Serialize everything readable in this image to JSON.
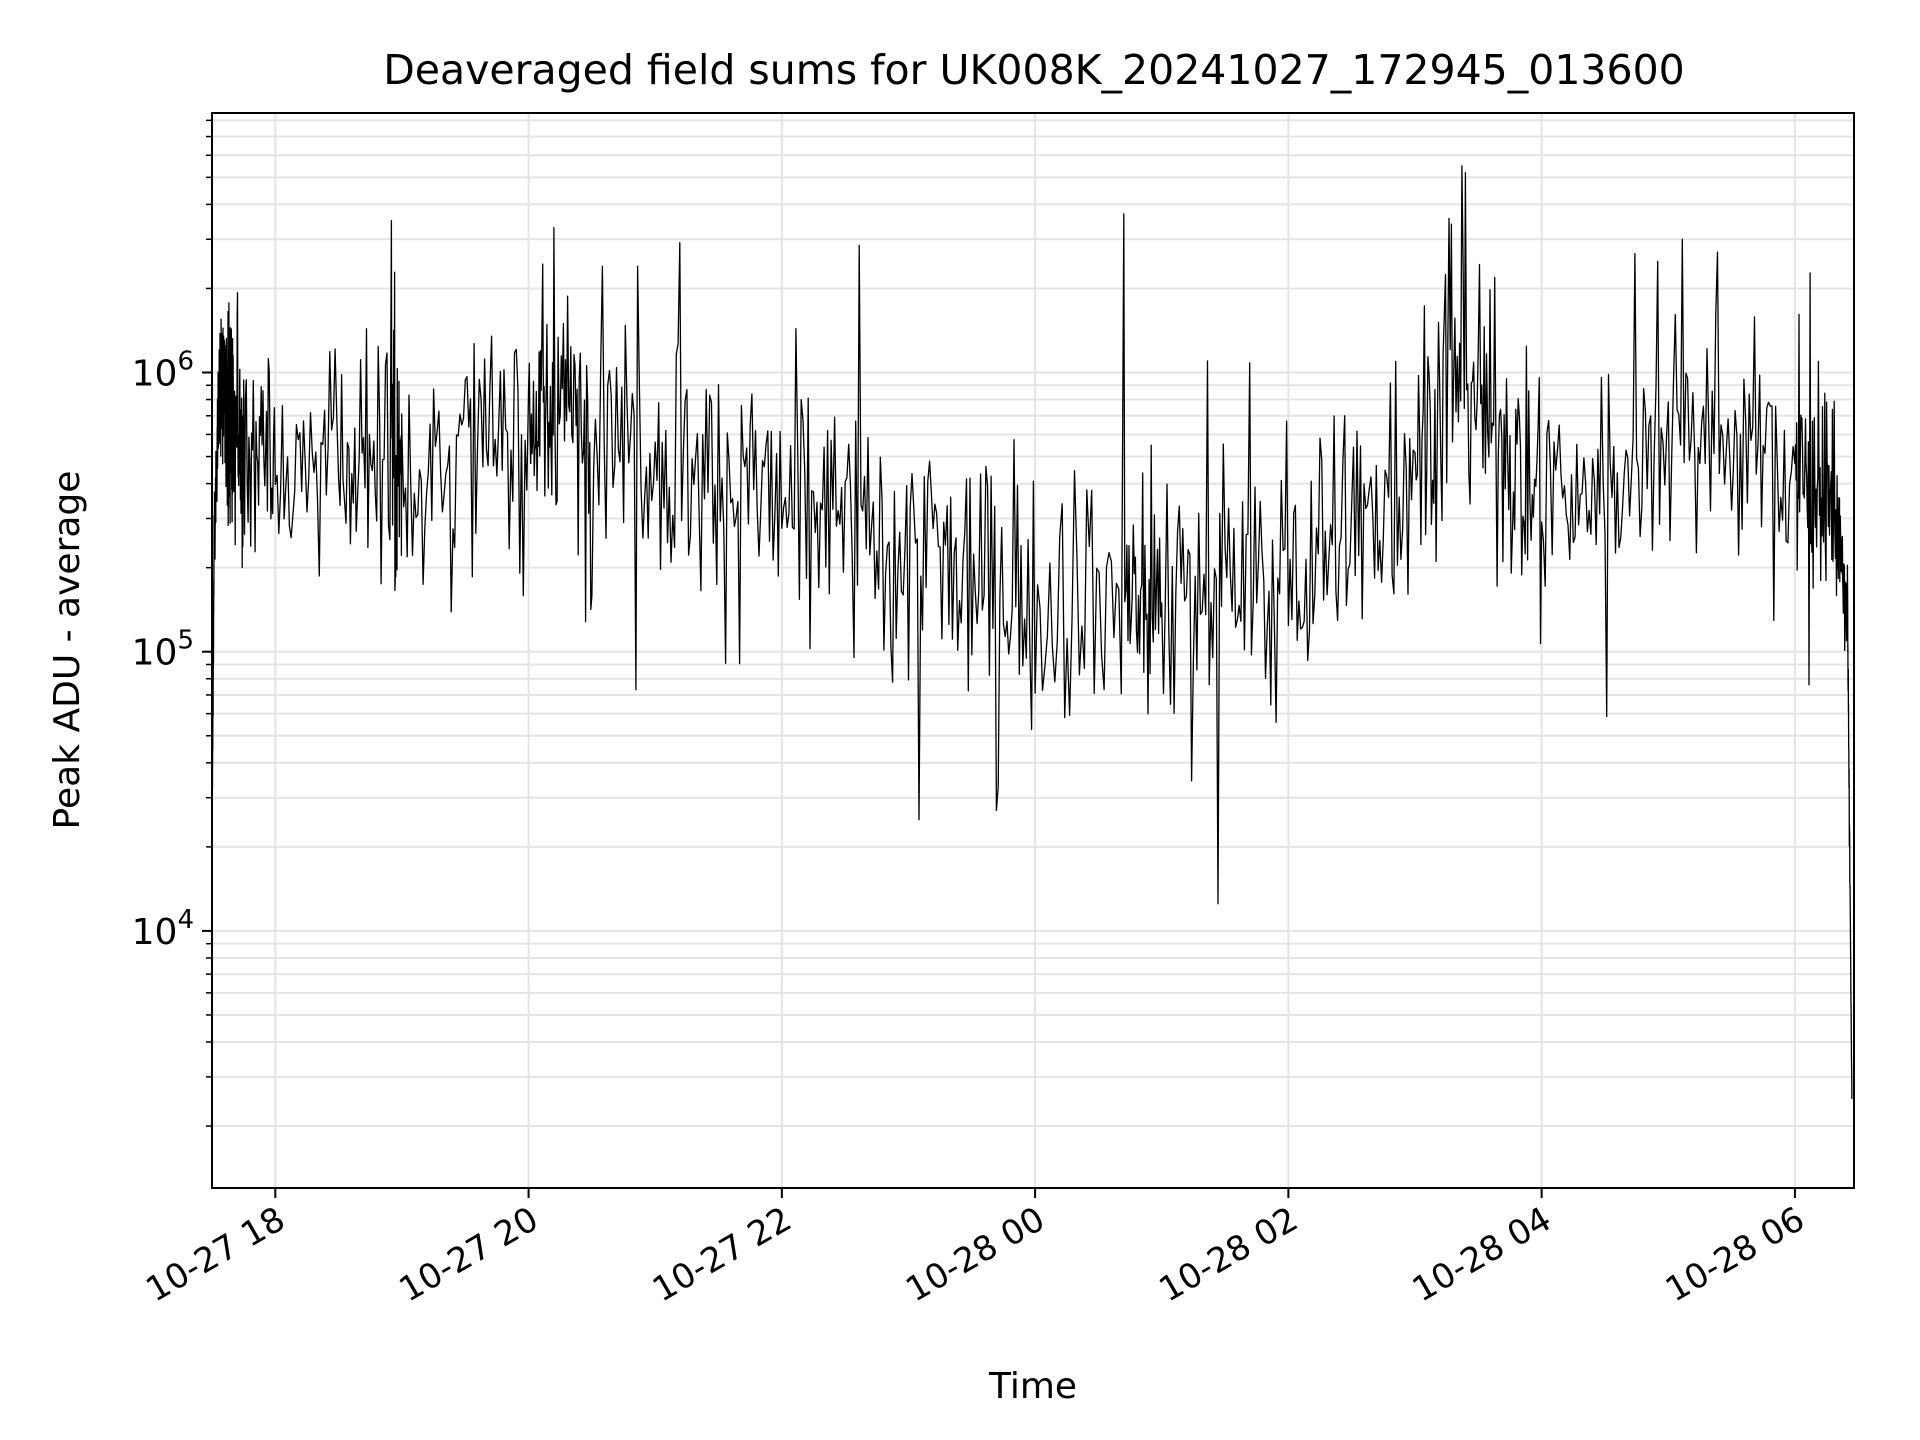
{
  "chart_data": {
    "type": "line",
    "title": "Deaveraged field sums for UK008K_20241027_172945_013600",
    "xlabel": "Time",
    "ylabel": "Peak ADU - average",
    "yscale": "log",
    "xlim": [
      "2024-10-27 17:30",
      "2024-10-28 06:28"
    ],
    "ylim": [
      1200,
      8500000
    ],
    "grid": true,
    "x_ticks": [
      {
        "time": "2024-10-27 18:00",
        "label": "10-27 18"
      },
      {
        "time": "2024-10-27 20:00",
        "label": "10-27 20"
      },
      {
        "time": "2024-10-27 22:00",
        "label": "10-27 22"
      },
      {
        "time": "2024-10-28 00:00",
        "label": "10-28 00"
      },
      {
        "time": "2024-10-28 02:00",
        "label": "10-28 02"
      },
      {
        "time": "2024-10-28 04:00",
        "label": "10-28 04"
      },
      {
        "time": "2024-10-28 06:00",
        "label": "10-28 06"
      }
    ],
    "y_ticks": [
      {
        "value": 10000,
        "base": "10",
        "exp": "4"
      },
      {
        "value": 100000,
        "base": "10",
        "exp": "5"
      },
      {
        "value": 1000000,
        "base": "10",
        "exp": "6"
      }
    ],
    "line_color": "#000000",
    "points_per_interval": 36,
    "series": [
      {
        "x": [
          "2024-10-27 17:30",
          "2024-10-27 17:31",
          "2024-10-27 17:33",
          "2024-10-27 17:35",
          "2024-10-27 17:37",
          "2024-10-27 17:40",
          "2024-10-27 17:45",
          "2024-10-27 18:00",
          "2024-10-27 18:30",
          "2024-10-27 18:55",
          "2024-10-27 19:00",
          "2024-10-27 19:30",
          "2024-10-27 20:00",
          "2024-10-27 20:12",
          "2024-10-27 20:30",
          "2024-10-27 21:00",
          "2024-10-27 21:30",
          "2024-10-27 22:00",
          "2024-10-27 22:30",
          "2024-10-27 23:00",
          "2024-10-27 23:30",
          "2024-10-28 00:00",
          "2024-10-28 00:42",
          "2024-10-28 01:00",
          "2024-10-28 01:30",
          "2024-10-28 02:00",
          "2024-10-28 02:30",
          "2024-10-28 03:00",
          "2024-10-28 03:20",
          "2024-10-28 03:40",
          "2024-10-28 04:00",
          "2024-10-28 04:30",
          "2024-10-28 05:00",
          "2024-10-28 05:30",
          "2024-10-28 06:00",
          "2024-10-28 06:10",
          "2024-10-28 06:20",
          "2024-10-28 06:25",
          "2024-10-28 06:27"
        ],
        "y": [
          20000,
          250000,
          700000,
          950000,
          800000,
          700000,
          550000,
          450000,
          480000,
          520000,
          470000,
          500000,
          650000,
          750000,
          700000,
          520000,
          400000,
          330000,
          300000,
          230000,
          180000,
          170000,
          150000,
          160000,
          170000,
          180000,
          260000,
          500000,
          1100000,
          600000,
          350000,
          380000,
          650000,
          600000,
          450000,
          400000,
          320000,
          120000,
          2500
        ],
        "spread": [
          0,
          0.15,
          0.25,
          0.35,
          0.45,
          0.5,
          0.55,
          0.55,
          0.55,
          0.55,
          0.55,
          0.55,
          0.5,
          0.5,
          0.5,
          0.55,
          0.6,
          0.6,
          0.6,
          0.62,
          0.62,
          0.62,
          0.62,
          0.62,
          0.62,
          0.62,
          0.6,
          0.55,
          0.5,
          0.55,
          0.55,
          0.55,
          0.5,
          0.5,
          0.5,
          0.45,
          0.35,
          0.2,
          0
        ],
        "spikes": [
          {
            "x": "2024-10-27 18:55",
            "y": 3500000
          },
          {
            "x": "2024-10-27 20:12",
            "y": 3300000
          },
          {
            "x": "2024-10-27 20:35",
            "y": 2400000
          },
          {
            "x": "2024-10-27 20:52",
            "y": 2400000
          },
          {
            "x": "2024-10-28 00:42",
            "y": 3700000
          },
          {
            "x": "2024-10-28 01:22",
            "y": 1100000
          },
          {
            "x": "2024-10-28 03:17",
            "y": 3400000
          },
          {
            "x": "2024-10-28 03:22",
            "y": 5500000
          },
          {
            "x": "2024-10-28 03:24",
            "y": 5200000
          },
          {
            "x": "2024-10-28 04:55",
            "y": 2500000
          },
          {
            "x": "2024-10-28 05:07",
            "y": 3000000
          },
          {
            "x": "2024-10-28 05:23",
            "y": 2700000
          },
          {
            "x": "2024-10-27 23:05",
            "y": 25000
          },
          {
            "x": "2024-10-27 23:42",
            "y": 27000
          }
        ]
      }
    ]
  }
}
